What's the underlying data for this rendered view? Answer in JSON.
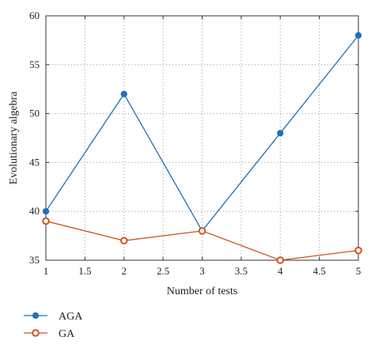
{
  "chart_data": {
    "type": "line",
    "title": "",
    "xlabel": "Number of tests",
    "ylabel": "Evolutionary algebra",
    "xlim": [
      1,
      5
    ],
    "ylim": [
      35,
      60
    ],
    "xticks": [
      1,
      1.5,
      2,
      2.5,
      3,
      3.5,
      4,
      4.5,
      5
    ],
    "xtick_labels": [
      "1",
      "1.5",
      "2",
      "2.5",
      "3",
      "3.5",
      "4",
      "4.5",
      "5"
    ],
    "yticks": [
      35,
      40,
      45,
      50,
      55,
      60
    ],
    "ytick_labels": [
      "35",
      "40",
      "45",
      "50",
      "55",
      "60"
    ],
    "grid": true,
    "legend_position": "below-left",
    "x": [
      1,
      2,
      3,
      4,
      5
    ],
    "series": [
      {
        "name": "AGA",
        "values": [
          40,
          52,
          38,
          48,
          58
        ],
        "color": "#1f6fb8",
        "marker": "filled-circle"
      },
      {
        "name": "GA",
        "values": [
          39,
          37,
          38,
          35,
          36
        ],
        "color": "#d0531f",
        "marker": "open-circle"
      }
    ]
  }
}
